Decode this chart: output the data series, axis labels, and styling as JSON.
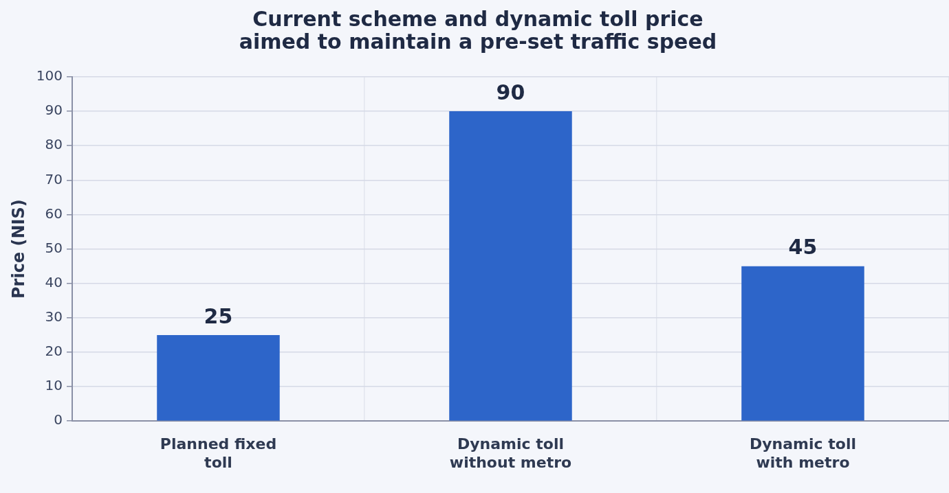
{
  "chart_data": {
    "type": "bar",
    "title": "Current scheme and dynamic toll price aimed to maintain a pre-set traffic speed",
    "ylabel": "Price (NIS)",
    "categories": [
      "Planned fixed toll",
      "Dynamic toll without metro",
      "Dynamic toll with metro"
    ],
    "values": [
      25,
      90,
      45
    ],
    "color": "#2d65c9",
    "ylim": [
      0,
      100
    ],
    "yticks": [
      0,
      10,
      20,
      30,
      40,
      50,
      60,
      70,
      80,
      90,
      100
    ],
    "grid": true,
    "data_labels": true,
    "legend": false
  }
}
